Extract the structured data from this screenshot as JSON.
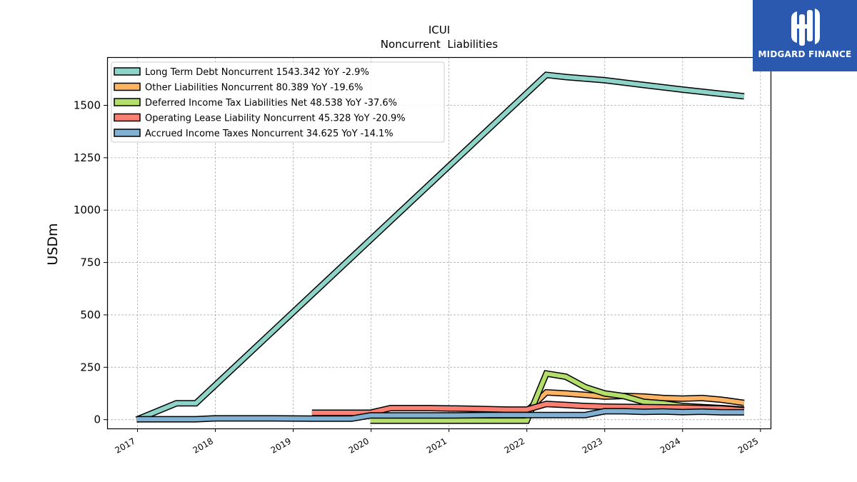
{
  "chart_data": {
    "type": "line",
    "title": "ICUI",
    "subtitle": "Noncurrent  Liabilities",
    "ylabel": "USDm",
    "xlabel": "",
    "ylim": [
      -42,
      1730
    ],
    "xlim": [
      2016.61,
      2025.13
    ],
    "x_ticks": [
      "2017",
      "2018",
      "2019",
      "2020",
      "2021",
      "2022",
      "2023",
      "2024",
      "2025"
    ],
    "y_ticks": [
      "0",
      "250",
      "500",
      "750",
      "1000",
      "1250",
      "1500"
    ],
    "grid": true,
    "legend_position": "top-left",
    "series": [
      {
        "name": "Long Term Debt Noncurrent  1543.342 YoY -2.9%",
        "color": "#8dd3c7",
        "points": [
          [
            2016.99,
            0
          ],
          [
            2017.5,
            78
          ],
          [
            2017.75,
            78
          ],
          [
            2022.25,
            1645
          ],
          [
            2022.5,
            1635
          ],
          [
            2023.0,
            1620
          ],
          [
            2023.5,
            1597
          ],
          [
            2024.0,
            1575
          ],
          [
            2024.79,
            1543
          ]
        ]
      },
      {
        "name": "Other Liabilities Noncurrent  80.389 YoY -19.6%",
        "color": "#fdb462",
        "points": [
          [
            2022.0,
            40
          ],
          [
            2022.25,
            130
          ],
          [
            2022.5,
            125
          ],
          [
            2022.75,
            118
          ],
          [
            2023.0,
            110
          ],
          [
            2023.25,
            113
          ],
          [
            2023.5,
            110
          ],
          [
            2023.75,
            103
          ],
          [
            2024.0,
            100
          ],
          [
            2024.25,
            103
          ],
          [
            2024.5,
            95
          ],
          [
            2024.79,
            80
          ]
        ]
      },
      {
        "name": "Deferred Income Tax Liabilities Net  48.538 YoY -37.6%",
        "color": "#b3de69",
        "points": [
          [
            2019.99,
            -5
          ],
          [
            2020.5,
            -5
          ],
          [
            2021.0,
            -5
          ],
          [
            2021.5,
            -5
          ],
          [
            2022.0,
            -5
          ],
          [
            2022.25,
            220
          ],
          [
            2022.5,
            205
          ],
          [
            2022.75,
            155
          ],
          [
            2023.0,
            125
          ],
          [
            2023.25,
            112
          ],
          [
            2023.5,
            85
          ],
          [
            2023.75,
            78
          ],
          [
            2024.0,
            65
          ],
          [
            2024.25,
            60
          ],
          [
            2024.5,
            55
          ],
          [
            2024.79,
            48
          ]
        ]
      },
      {
        "name": "Operating Lease Liability Noncurrent  45.328 YoY -20.9%",
        "color": "#fb8072",
        "points": [
          [
            2019.24,
            33
          ],
          [
            2019.99,
            33
          ],
          [
            2020.25,
            55
          ],
          [
            2020.75,
            55
          ],
          [
            2021.25,
            52
          ],
          [
            2021.75,
            48
          ],
          [
            2022.0,
            48
          ],
          [
            2022.25,
            75
          ],
          [
            2022.5,
            70
          ],
          [
            2022.75,
            65
          ],
          [
            2023.0,
            62
          ],
          [
            2023.5,
            60
          ],
          [
            2024.0,
            57
          ],
          [
            2024.5,
            53
          ],
          [
            2024.79,
            45
          ]
        ]
      },
      {
        "name": "Accrued Income Taxes Noncurrent  34.625 YoY -14.1%",
        "color": "#80b1d3",
        "points": [
          [
            2016.99,
            2
          ],
          [
            2017.75,
            2
          ],
          [
            2017.99,
            6
          ],
          [
            2018.75,
            6
          ],
          [
            2019.24,
            5
          ],
          [
            2019.75,
            5
          ],
          [
            2019.99,
            20
          ],
          [
            2020.5,
            20
          ],
          [
            2021.0,
            20
          ],
          [
            2021.5,
            22
          ],
          [
            2022.0,
            22
          ],
          [
            2022.5,
            22
          ],
          [
            2022.75,
            22
          ],
          [
            2023.0,
            40
          ],
          [
            2023.25,
            40
          ],
          [
            2023.5,
            37
          ],
          [
            2023.75,
            39
          ],
          [
            2024.0,
            36
          ],
          [
            2024.25,
            38
          ],
          [
            2024.5,
            35
          ],
          [
            2024.79,
            35
          ]
        ]
      }
    ]
  },
  "logo": {
    "text": "MIDGARD FINANCE",
    "icon": "midgard-logo-icon"
  }
}
